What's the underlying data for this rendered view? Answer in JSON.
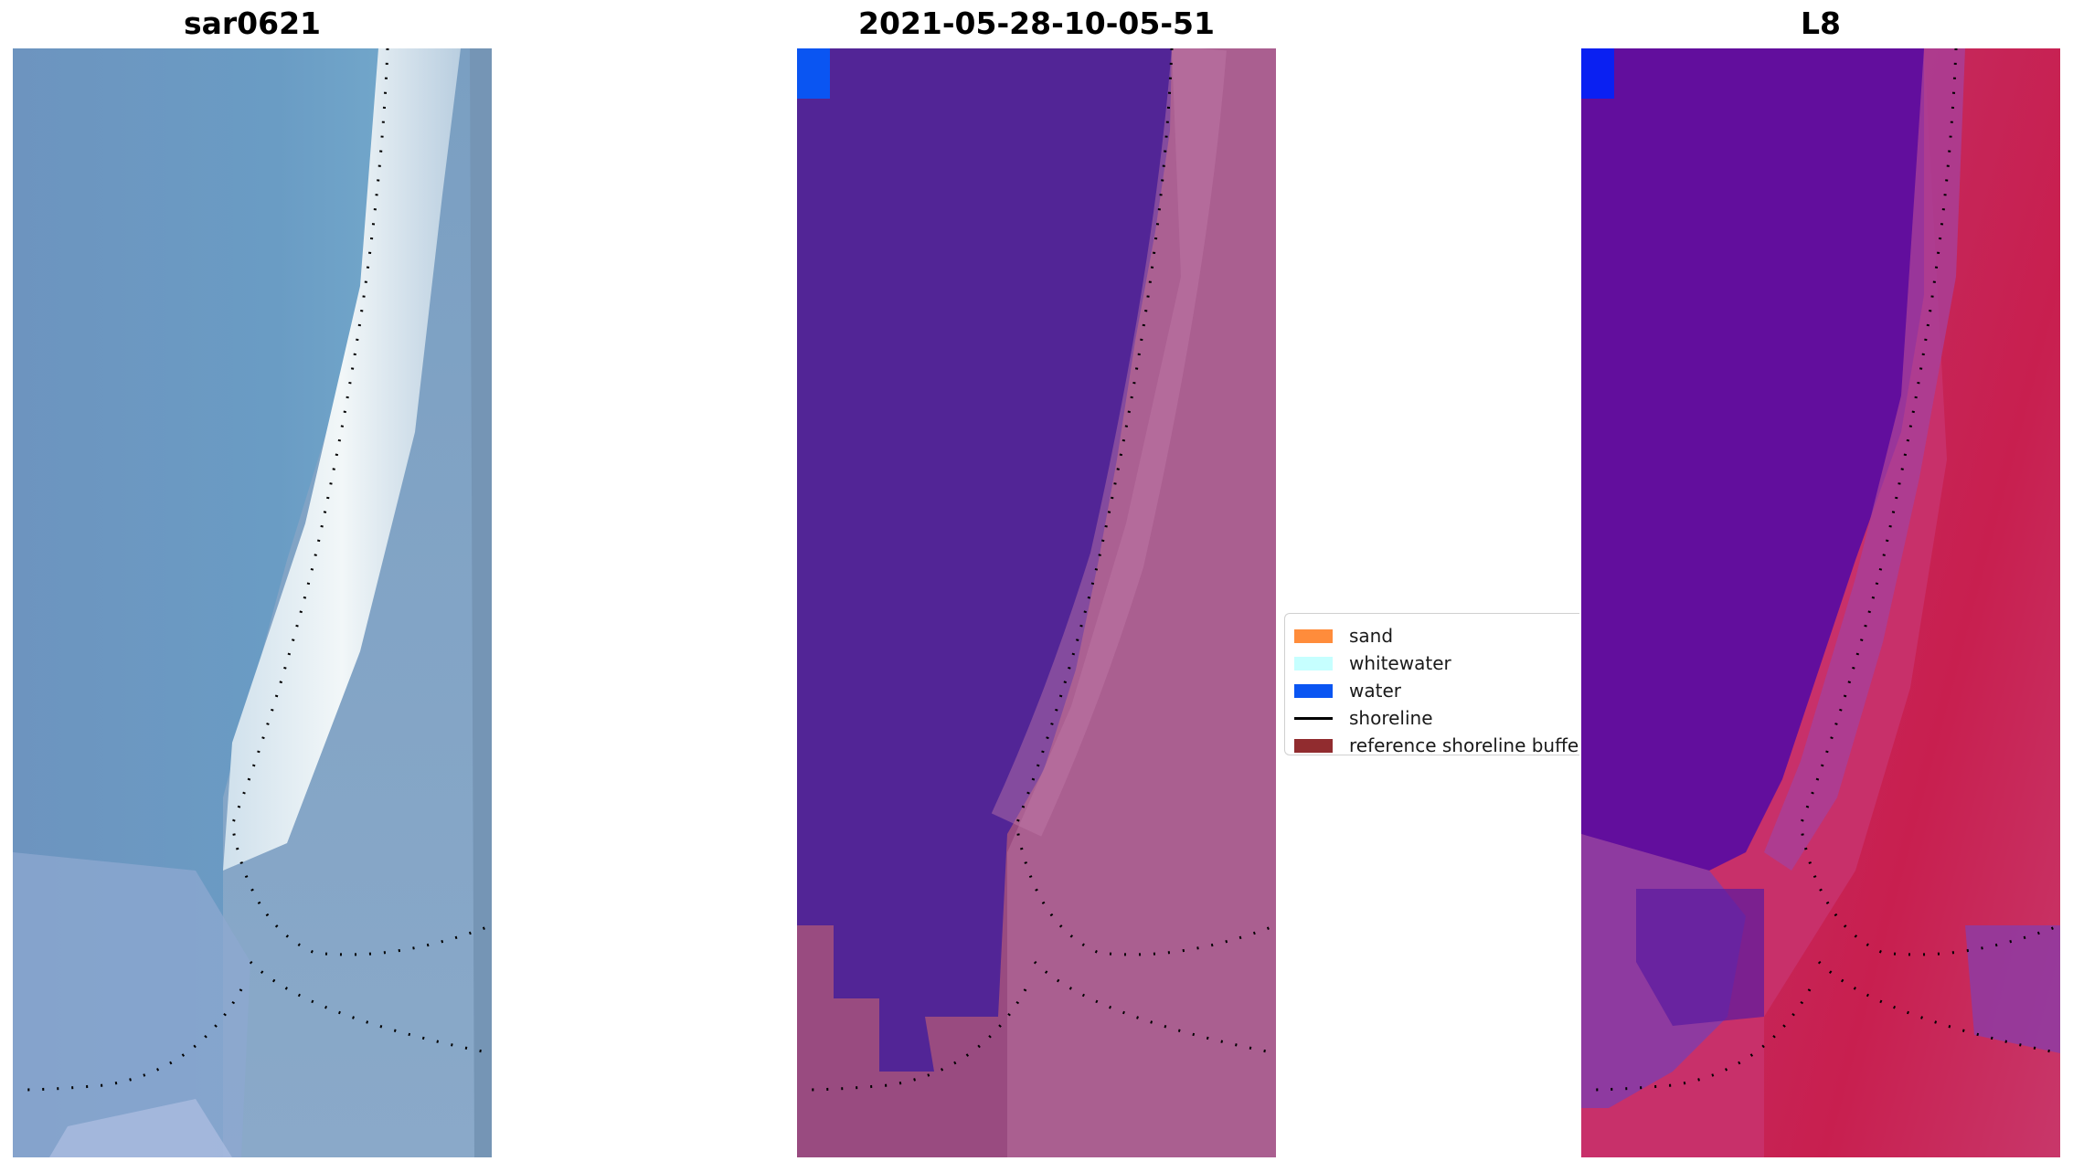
{
  "panels": [
    {
      "title": "sar0621"
    },
    {
      "title": "2021-05-28-10-05-51"
    },
    {
      "title": "L8"
    }
  ],
  "legend": {
    "items": [
      {
        "label": "sand",
        "color": "#ff8c3b",
        "kind": "patch"
      },
      {
        "label": "whitewater",
        "color": "#c6ffff",
        "kind": "patch"
      },
      {
        "label": "water",
        "color": "#0a55f2",
        "kind": "patch"
      },
      {
        "label": "shoreline",
        "color": "#000000",
        "kind": "line"
      },
      {
        "label": "reference shoreline buffer",
        "color": "#912c2f",
        "kind": "patch"
      }
    ]
  },
  "colors": {
    "sar_water": "#6b95bf",
    "sar_surf": "#e6eef2",
    "classified_water": "#522596",
    "classified_land": "#99487e",
    "classified_water_pixel": "#0a55f2",
    "l8_water": "#620e9d",
    "l8_land": "#c8265a"
  }
}
